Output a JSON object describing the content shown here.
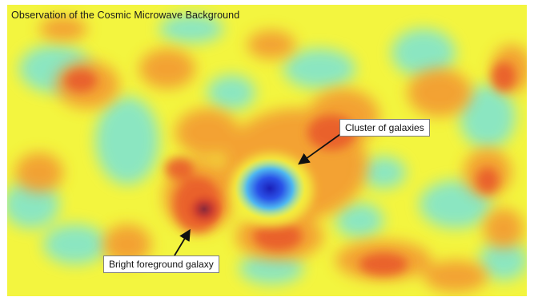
{
  "title": "Observation of the Cosmic Microwave Background",
  "annotations": {
    "cluster": "Cluster of galaxies",
    "galaxy": "Bright foreground galaxy"
  },
  "colors": {
    "background_yellow": "#f3f53f",
    "cyan": "#7de6d2",
    "orange": "#f39a33",
    "red": "#e8562a",
    "dark_red": "#a8323a",
    "blue_center": "#2530d8"
  }
}
